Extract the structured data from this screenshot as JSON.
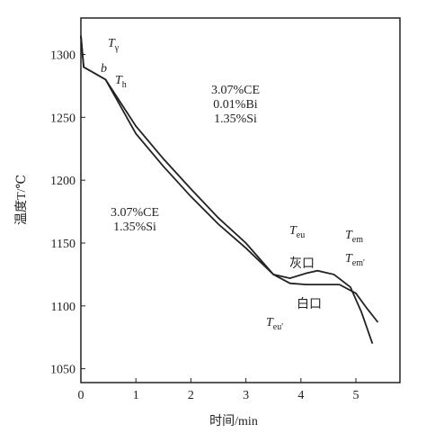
{
  "chart_data": {
    "type": "line",
    "xlabel": "时间/min",
    "ylabel": "温度T/℃",
    "xlim": [
      0,
      5.8
    ],
    "ylim": [
      1039,
      1329
    ],
    "xticks": [
      0,
      1,
      2,
      3,
      4,
      5
    ],
    "yticks": [
      1050,
      1100,
      1150,
      1200,
      1250,
      1300
    ],
    "series": [
      {
        "color": "#222222",
        "x": [
          0,
          0.05,
          0.45,
          1,
          1.5,
          2,
          2.5,
          3,
          3.5,
          3.8,
          4.1,
          4.3,
          4.6,
          4.9,
          5.1,
          5.3
        ],
        "values": [
          1315,
          1290,
          1280,
          1243,
          1217,
          1193,
          1170,
          1150,
          1125,
          1122,
          1126,
          1128,
          1125,
          1115,
          1095,
          1070
        ]
      },
      {
        "color": "#222222",
        "x": [
          0,
          0.05,
          0.45,
          1,
          1.5,
          2,
          2.5,
          3,
          3.5,
          3.8,
          4.1,
          4.4,
          4.7,
          5.0,
          5.2,
          5.4
        ],
        "values": [
          1315,
          1290,
          1280,
          1237,
          1211,
          1187,
          1165,
          1146,
          1125,
          1118,
          1117,
          1117,
          1117,
          1110,
          1098,
          1087
        ]
      }
    ],
    "annotations": [
      {
        "main": "T",
        "sub": "γ"
      },
      {
        "main": "b"
      },
      {
        "main": "T",
        "sub": "h"
      },
      {
        "lines": [
          "3.07%CE",
          "0.01%Bi",
          "1.35%Si"
        ]
      },
      {
        "lines": [
          "3.07%CE",
          "1.35%Si"
        ]
      },
      {
        "main": "T",
        "sub": "eu"
      },
      {
        "main": "T",
        "sub": "em"
      },
      {
        "main": "灰口"
      },
      {
        "main": "T",
        "sub": "em'"
      },
      {
        "main": "白口"
      },
      {
        "main": "T",
        "sub": "eu'"
      }
    ]
  }
}
